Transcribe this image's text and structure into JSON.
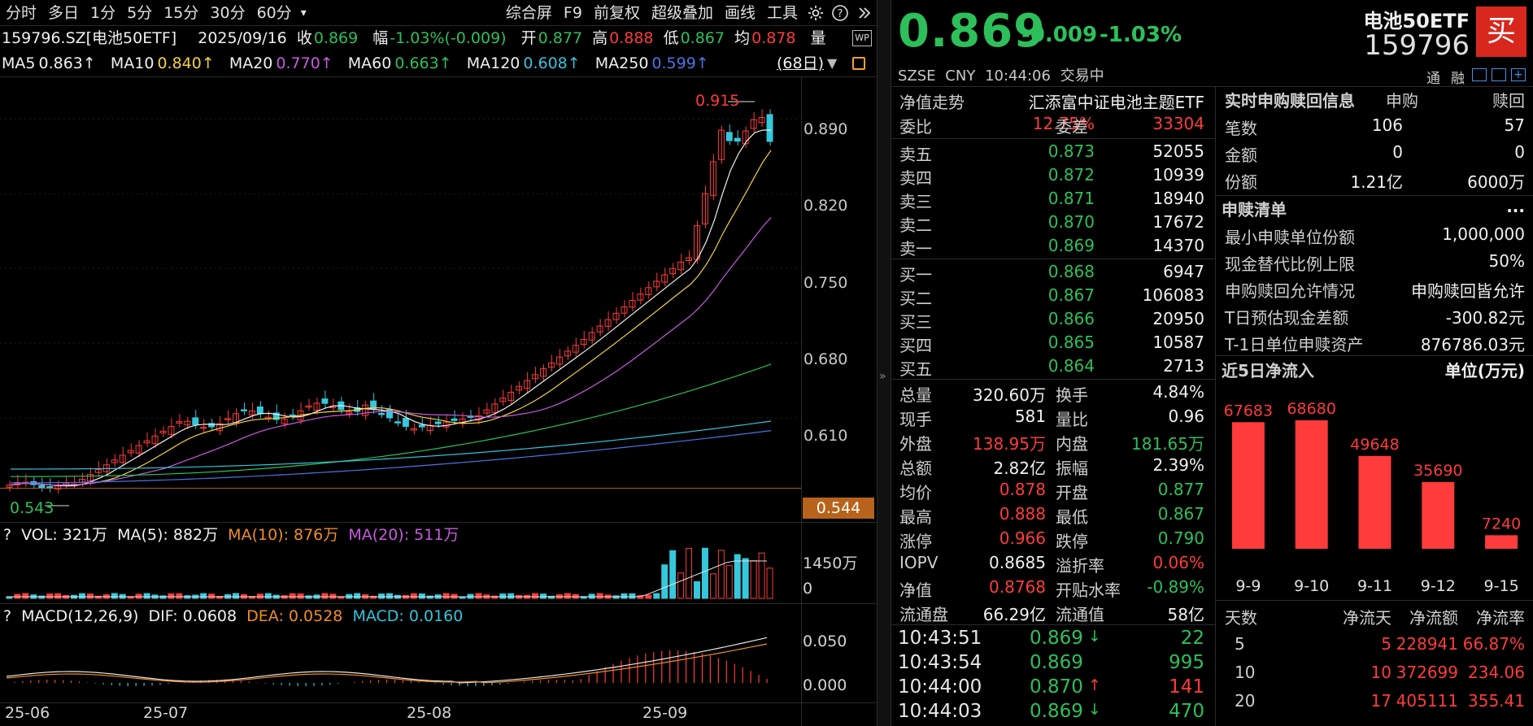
{
  "toolbar": {
    "items": [
      "分时",
      "多日",
      "1分",
      "5分",
      "15分",
      "30分",
      "60分",
      "综合屏",
      "F9",
      "前复权",
      "超级叠加",
      "画线",
      "工具"
    ],
    "dropdown": "▾",
    "icons": [
      "gear-icon",
      "help-icon",
      "expand-icon"
    ]
  },
  "quote_line": {
    "code": "159796.SZ[电池50ETF]",
    "date": "2025/09/16",
    "close_label": "收",
    "close": "0.869",
    "chg_label": "幅",
    "chg": "-1.03%(-0.009)",
    "open_label": "开",
    "open": "0.877",
    "high_label": "高",
    "high": "0.888",
    "low_label": "低",
    "low": "0.867",
    "avg_label": "均",
    "avg": "0.878",
    "vol_label": "量"
  },
  "ma_line": {
    "ma5_label": "MA5",
    "ma5": "0.863↑",
    "ma10_label": "MA10",
    "ma10": "0.840↑",
    "ma20_label": "MA20",
    "ma20": "0.770↑",
    "ma60_label": "MA60",
    "ma60": "0.663↑",
    "ma120_label": "MA120",
    "ma120": "0.608↑",
    "ma250_label": "MA250",
    "ma250": "0.599↑",
    "range": "(68日)"
  },
  "colors": {
    "up": "#ff3b3b",
    "down": "#35c8dc",
    "ma5": "#f0f0f0",
    "ma10": "#f5d142",
    "ma20": "#c85ae0",
    "ma60": "#2dc05a",
    "ma120": "#35c3dc",
    "ma250": "#4f72e8",
    "bar": "#ff3b3b"
  },
  "price_axis": [
    "0.890",
    "0.820",
    "0.750",
    "0.680",
    "0.610"
  ],
  "annotations": {
    "high": "0.915",
    "low": "0.543",
    "current": "0.544"
  },
  "vol_line": {
    "q": "?",
    "vol": "VOL: 321万",
    "ma5": "MA(5): 882万",
    "ma10": "MA(10): 876万",
    "ma20": "MA(20): 511万",
    "axis_top": "1450万",
    "axis_zero": "0"
  },
  "macd_line": {
    "q": "?",
    "name": "MACD(12,26,9)",
    "dif": "DIF: 0.0608",
    "dea": "DEA: 0.0528",
    "macd": "MACD: 0.0160",
    "axis_top": "0.050",
    "axis_zero": "0.000"
  },
  "x_axis": [
    "25-06",
    "25-07",
    "25-08",
    "25-09"
  ],
  "header": {
    "price": "0.869",
    "chg": "-0.009",
    "pct": "-1.03%",
    "name": "电池50ETF",
    "code": "159796",
    "buy_btn": "买",
    "exch": "SZSE",
    "ccy": "CNY",
    "time": "10:44:06",
    "status": "交易中",
    "tong": "通",
    "rong": "融"
  },
  "nav_row": {
    "label": "净值走势",
    "fund": "汇添富中证电池主题ETF"
  },
  "weibi": {
    "label1": "委比",
    "val1": "12.75%",
    "label2": "委差",
    "val2": "33304"
  },
  "asks": [
    {
      "l": "卖五",
      "p": "0.873",
      "v": "52055"
    },
    {
      "l": "卖四",
      "p": "0.872",
      "v": "10939"
    },
    {
      "l": "卖三",
      "p": "0.871",
      "v": "18940"
    },
    {
      "l": "卖二",
      "p": "0.870",
      "v": "17672"
    },
    {
      "l": "卖一",
      "p": "0.869",
      "v": "14370"
    }
  ],
  "bids": [
    {
      "l": "买一",
      "p": "0.868",
      "v": "6947"
    },
    {
      "l": "买二",
      "p": "0.867",
      "v": "106083"
    },
    {
      "l": "买三",
      "p": "0.866",
      "v": "20950"
    },
    {
      "l": "买四",
      "p": "0.865",
      "v": "10587"
    },
    {
      "l": "买五",
      "p": "0.864",
      "v": "2713"
    }
  ],
  "stats": [
    {
      "a": "总量",
      "b": "320.60万",
      "bc": "white",
      "c": "换手",
      "d": "4.84%",
      "dc": "white"
    },
    {
      "a": "现手",
      "b": "581",
      "bc": "white",
      "c": "量比",
      "d": "0.96",
      "dc": "white"
    },
    {
      "a": "外盘",
      "b": "138.95万",
      "bc": "red",
      "c": "内盘",
      "d": "181.65万",
      "dc": "green"
    },
    {
      "a": "总额",
      "b": "2.82亿",
      "bc": "white",
      "c": "振幅",
      "d": "2.39%",
      "dc": "white"
    },
    {
      "a": "均价",
      "b": "0.878",
      "bc": "red",
      "c": "开盘",
      "d": "0.877",
      "dc": "green"
    },
    {
      "a": "最高",
      "b": "0.888",
      "bc": "red",
      "c": "最低",
      "d": "0.867",
      "dc": "green"
    },
    {
      "a": "涨停",
      "b": "0.966",
      "bc": "red",
      "c": "跌停",
      "d": "0.790",
      "dc": "green"
    },
    {
      "a": "IOPV",
      "b": "0.8685",
      "bc": "white",
      "c": "溢折率",
      "d": "0.06%",
      "dc": "red"
    },
    {
      "a": "净值",
      "b": "0.8768",
      "bc": "red",
      "c": "开贴水率",
      "d": "-0.89%",
      "dc": "green"
    },
    {
      "a": "流通盘",
      "b": "66.29亿",
      "bc": "white",
      "c": "流通值",
      "d": "58亿",
      "dc": "white"
    }
  ],
  "ticks": [
    {
      "t": "10:43:51",
      "p": "0.869",
      "arrow": "↓",
      "v": "22",
      "vc": "green"
    },
    {
      "t": "10:43:54",
      "p": "0.869",
      "arrow": "",
      "v": "995",
      "vc": "green"
    },
    {
      "t": "10:44:00",
      "p": "0.870",
      "arrow": "↑",
      "v": "141",
      "vc": "red"
    },
    {
      "t": "10:44:03",
      "p": "0.869",
      "arrow": "↓",
      "v": "470",
      "vc": "green"
    }
  ],
  "redeem": {
    "title": "实时申购赎回信息",
    "col1": "申购",
    "col2": "赎回",
    "rows": [
      {
        "k": "笔数",
        "a": "106",
        "b": "57"
      },
      {
        "k": "金额",
        "a": "0",
        "b": "0"
      },
      {
        "k": "份额",
        "a": "1.21亿",
        "b": "6000万"
      }
    ]
  },
  "list": {
    "title": "申赎清单",
    "more": "...",
    "rows": [
      {
        "k": "最小申赎单位份额",
        "v": "1,000,000"
      },
      {
        "k": "现金替代比例上限",
        "v": "50%"
      },
      {
        "k": "申购赎回允许情况",
        "v": "申购赎回皆允许"
      },
      {
        "k": "T日预估现金差额",
        "v": "-300.82元"
      },
      {
        "k": "T-1日单位申赎资产",
        "v": "876786.03元"
      }
    ]
  },
  "flow": {
    "title": "近5日净流入",
    "unit": "单位(万元)"
  },
  "chart_data": {
    "type": "bar",
    "categories": [
      "9-9",
      "9-10",
      "9-11",
      "9-12",
      "9-15"
    ],
    "values": [
      67683,
      68680,
      49648,
      35690,
      7240
    ],
    "title": "近5日净流入",
    "ylabel": "单位(万元)"
  },
  "flow_table": {
    "headers": [
      "天数",
      "净流天",
      "净流额",
      "净流率"
    ],
    "rows": [
      [
        "5",
        "5",
        "228941",
        "66.87%"
      ],
      [
        "10",
        "10",
        "372699",
        "234.06"
      ],
      [
        "20",
        "17",
        "405111",
        "355.41"
      ]
    ]
  }
}
